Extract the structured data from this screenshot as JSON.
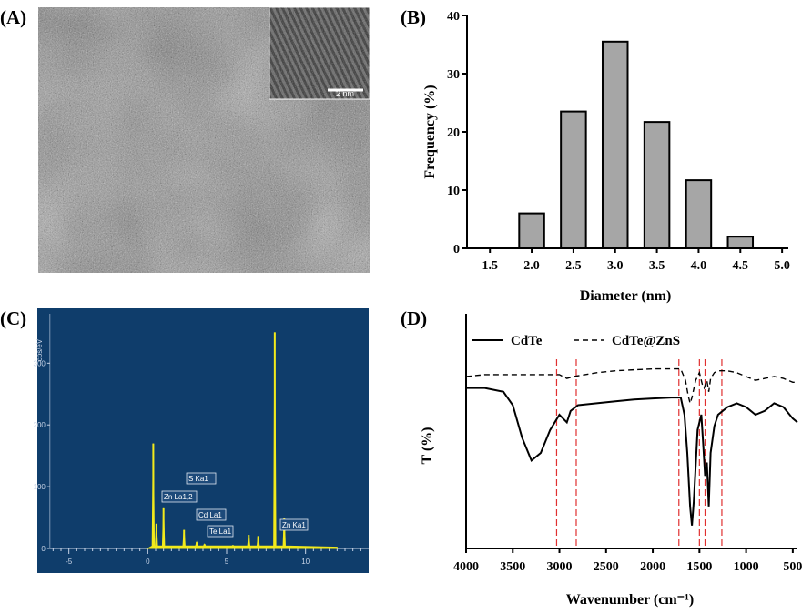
{
  "panels": {
    "A": {
      "label": "(A)",
      "scale_bar": "2 nm"
    },
    "B": {
      "label": "(B)"
    },
    "C": {
      "label": "(C)"
    },
    "D": {
      "label": "(D)"
    }
  },
  "chart_data": [
    {
      "id": "B",
      "type": "bar",
      "categories": [
        "2.0",
        "2.5",
        "3.0",
        "3.5",
        "4.0",
        "4.5"
      ],
      "x_ticks": [
        "1.5",
        "2.0",
        "2.5",
        "3.0",
        "3.5",
        "4.0",
        "4.5",
        "5.0"
      ],
      "values": [
        6,
        23.5,
        35.5,
        21.7,
        11.7,
        2
      ],
      "xlabel": "Diameter (nm)",
      "ylabel": "Frequency (%)",
      "ylim": [
        0,
        40
      ],
      "y_ticks": [
        "0",
        "10",
        "20",
        "30",
        "40"
      ],
      "bar_color": "#a6a6a6"
    },
    {
      "id": "C",
      "type": "line",
      "ylabel": "cps/eV",
      "xlim": [
        -7,
        14
      ],
      "ylim": [
        0,
        380
      ],
      "x_ticks": [
        "-5",
        "0",
        "5",
        "10"
      ],
      "y_ticks": [
        "0",
        "100",
        "200",
        "300"
      ],
      "background": "#0f3d6b",
      "line_color": "#f2ea1b",
      "peaks": [
        {
          "x": 0.35,
          "y": 170
        },
        {
          "x": 0.55,
          "y": 40
        },
        {
          "x": 1.0,
          "y": 65
        },
        {
          "x": 2.3,
          "y": 30
        },
        {
          "x": 3.1,
          "y": 10
        },
        {
          "x": 3.6,
          "y": 7
        },
        {
          "x": 5.4,
          "y": 5
        },
        {
          "x": 6.4,
          "y": 22
        },
        {
          "x": 7.0,
          "y": 20
        },
        {
          "x": 8.05,
          "y": 350
        },
        {
          "x": 8.65,
          "y": 50
        }
      ],
      "annotations": [
        "S Ka1",
        "Zn La1,2",
        "Cd La1",
        "Te La1",
        "Zn Ka1"
      ]
    },
    {
      "id": "D",
      "type": "line",
      "xlabel": "Wavenumber (cm⁻¹)",
      "ylabel": "T (%)",
      "xlim": [
        4000,
        450
      ],
      "x_ticks": [
        "4000",
        "3500",
        "3000",
        "2500",
        "2000",
        "1500",
        "1000",
        "500"
      ],
      "series": [
        {
          "name": "CdTe",
          "style": "solid",
          "x": [
            4000,
            3800,
            3600,
            3500,
            3400,
            3300,
            3200,
            3100,
            3000,
            2920,
            2880,
            2800,
            2600,
            2400,
            2200,
            2000,
            1800,
            1700,
            1660,
            1630,
            1600,
            1580,
            1560,
            1520,
            1480,
            1460,
            1440,
            1420,
            1400,
            1380,
            1340,
            1300,
            1200,
            1100,
            1000,
            900,
            800,
            700,
            600,
            500,
            450
          ],
          "y": [
            84,
            84,
            82,
            75,
            58,
            46,
            50,
            62,
            70,
            66,
            72,
            75,
            76,
            77,
            78,
            78.5,
            79,
            79,
            70,
            50,
            22,
            12,
            25,
            62,
            70,
            55,
            38,
            45,
            22,
            50,
            64,
            70,
            74,
            76,
            74,
            70,
            72,
            76,
            74,
            68,
            66
          ],
          "color": "#000000"
        },
        {
          "name": "CdTe@ZnS",
          "style": "dashed",
          "x": [
            4000,
            3800,
            3600,
            3400,
            3200,
            3000,
            2920,
            2850,
            2600,
            2400,
            2200,
            2000,
            1800,
            1700,
            1650,
            1620,
            1600,
            1580,
            1540,
            1500,
            1470,
            1450,
            1420,
            1400,
            1380,
            1340,
            1300,
            1200,
            1100,
            1000,
            900,
            800,
            700,
            600,
            500,
            450
          ],
          "y": [
            90,
            91,
            91,
            91,
            91,
            91,
            89,
            90,
            92,
            93,
            93.5,
            94,
            94,
            94,
            88,
            80,
            76,
            79,
            88,
            92,
            86,
            84,
            88,
            82,
            89,
            92,
            93,
            93,
            92,
            90,
            88,
            89,
            90,
            89,
            87,
            87
          ],
          "color": "#000000"
        }
      ],
      "reference_lines": [
        3030,
        2820,
        1720,
        1500,
        1440,
        1260
      ],
      "reference_color": "#e03030"
    }
  ]
}
